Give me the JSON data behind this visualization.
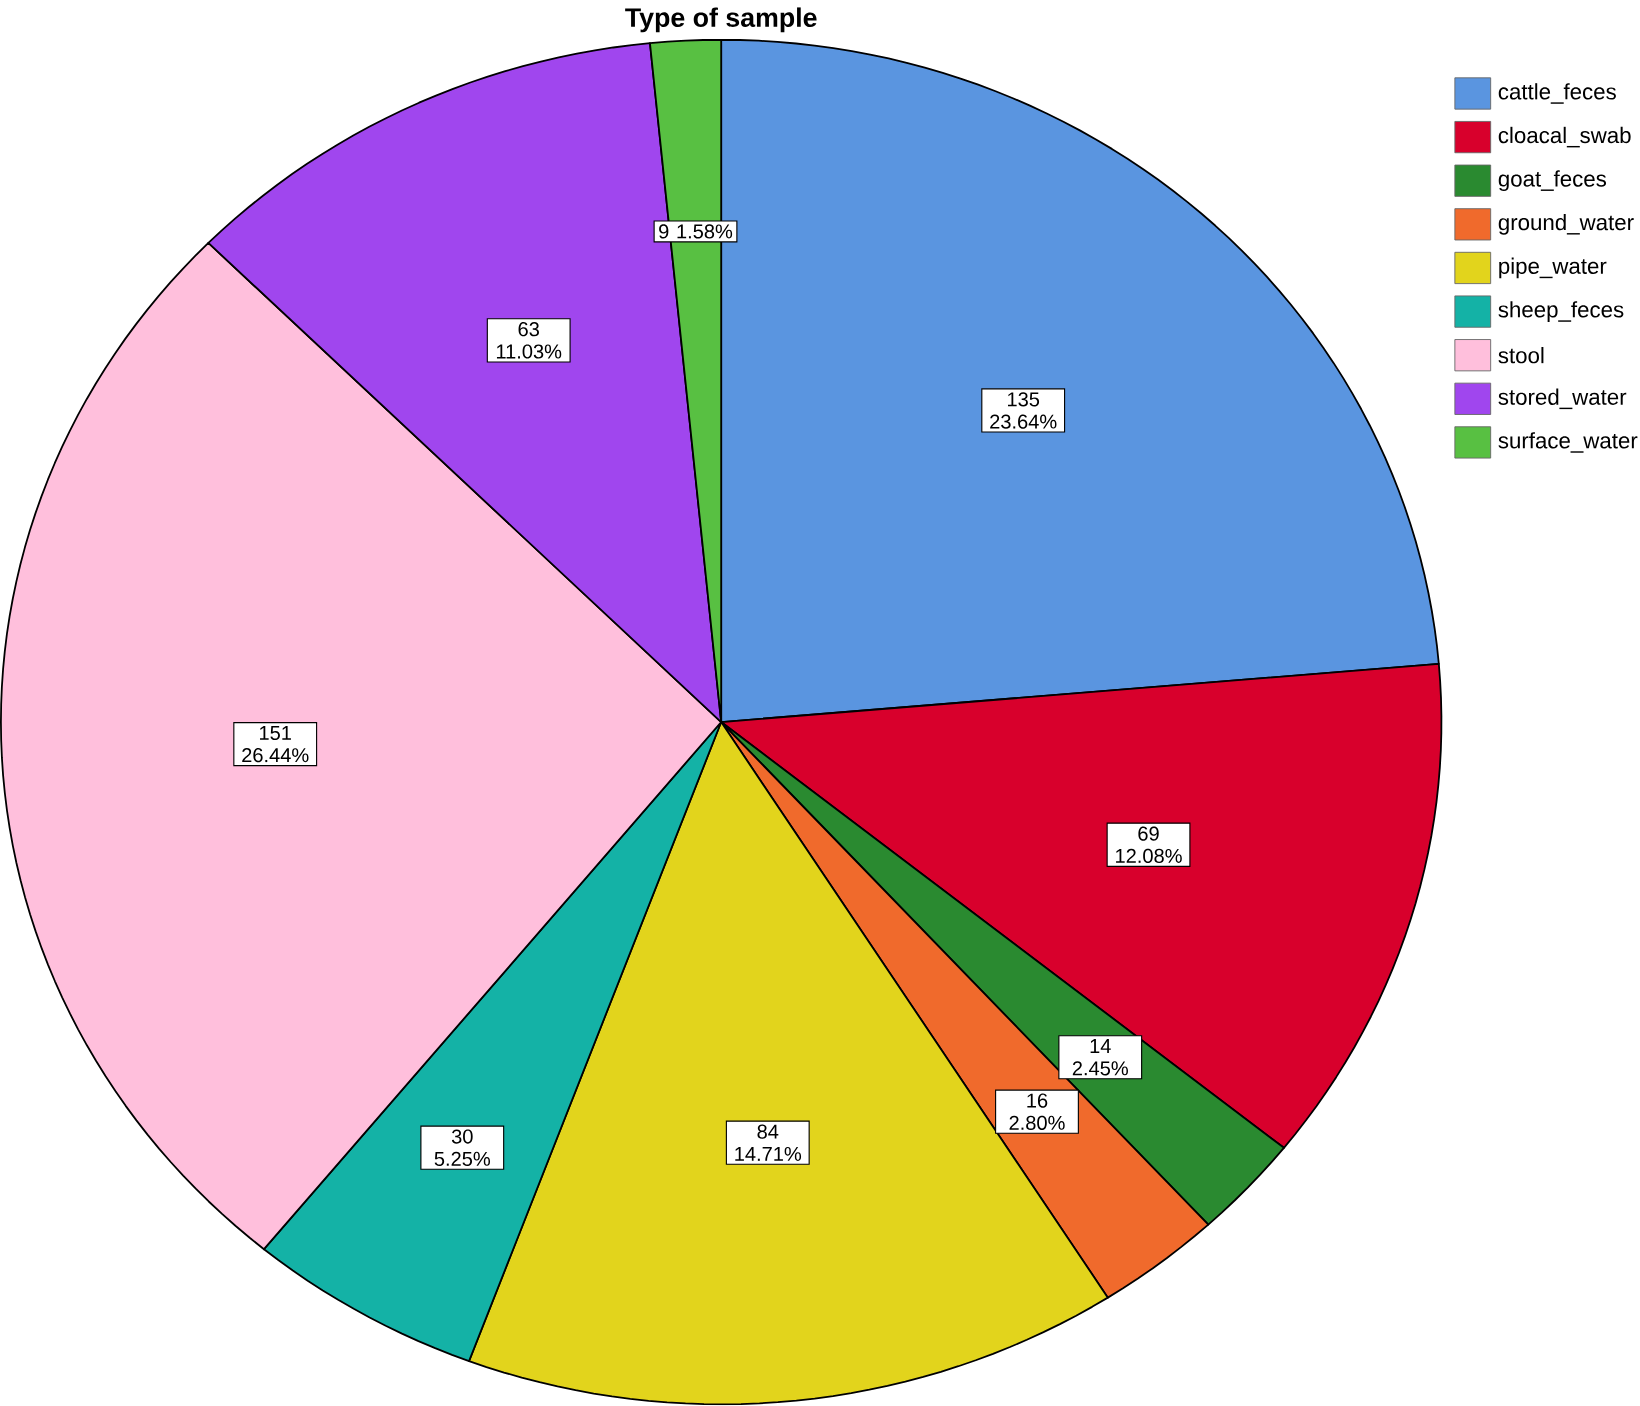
{
  "chart_data": {
    "type": "pie",
    "title": "Type of sample",
    "categories": [
      "cattle_feces",
      "cloacal_swab",
      "goat_feces",
      "ground_water",
      "pipe_water",
      "sheep_feces",
      "stool",
      "stored_water",
      "surface_water"
    ],
    "values": [
      135,
      69,
      14,
      16,
      84,
      30,
      151,
      63,
      9
    ],
    "colors": [
      "#5a95e0",
      "#d8002c",
      "#2a8a30",
      "#f06a2c",
      "#e2d41c",
      "#14b2a6",
      "#ffbfdc",
      "#a046ee",
      "#58c042"
    ],
    "value_labels": [
      "135 23.64%",
      "69 12.08%",
      "14 2.45%",
      "16 2.80%",
      "84 14.71%",
      "30 5.25%",
      "151 26.44%",
      "63 11.03%",
      "9 1.58%"
    ],
    "legend": "top right"
  }
}
